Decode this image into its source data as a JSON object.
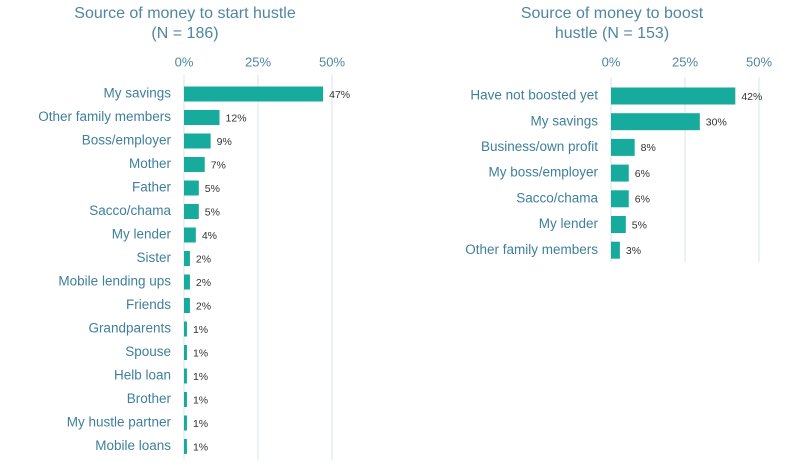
{
  "chart_data": [
    {
      "type": "bar",
      "orientation": "horizontal",
      "title": [
        "Source of money to start hustle",
        "(N = 186)"
      ],
      "categories": [
        "My savings",
        "Other family members",
        "Boss/employer",
        "Mother",
        "Father",
        "Sacco/chama",
        "My lender",
        "Sister",
        "Mobile lending ups",
        "Friends",
        "Grandparents",
        "Spouse",
        "Helb loan",
        "Brother",
        "My hustle partner",
        "Mobile loans"
      ],
      "values": [
        47,
        12,
        9,
        7,
        5,
        5,
        4,
        2,
        2,
        2,
        1,
        1,
        1,
        1,
        1,
        1
      ],
      "value_labels": [
        "47%",
        "12%",
        "9%",
        "7%",
        "5%",
        "5%",
        "4%",
        "2%",
        "2%",
        "2%",
        "1%",
        "1%",
        "1%",
        "1%",
        "1%",
        "1%"
      ],
      "color": "#17ab9d",
      "xlim": [
        0,
        50
      ],
      "xticks": [
        {
          "value": 0,
          "label": "0%"
        },
        {
          "value": 25,
          "label": "25%"
        },
        {
          "value": 50,
          "label": "50%"
        }
      ],
      "grid": true
    },
    {
      "type": "bar",
      "orientation": "horizontal",
      "title": [
        "Source of money to boost",
        "hustle (N = 153)"
      ],
      "categories": [
        "Have not boosted yet",
        "My savings",
        "Business/own profit",
        "My boss/employer",
        "Sacco/chama",
        "My lender",
        "Other family members"
      ],
      "values": [
        42,
        30,
        8,
        6,
        6,
        5,
        3
      ],
      "value_labels": [
        "42%",
        "30%",
        "8%",
        "6%",
        "6%",
        "5%",
        "3%"
      ],
      "color": "#17ab9d",
      "xlim": [
        0,
        50
      ],
      "xticks": [
        {
          "value": 0,
          "label": "0%"
        },
        {
          "value": 25,
          "label": "25%"
        },
        {
          "value": 50,
          "label": "50%"
        }
      ],
      "grid": true
    }
  ]
}
